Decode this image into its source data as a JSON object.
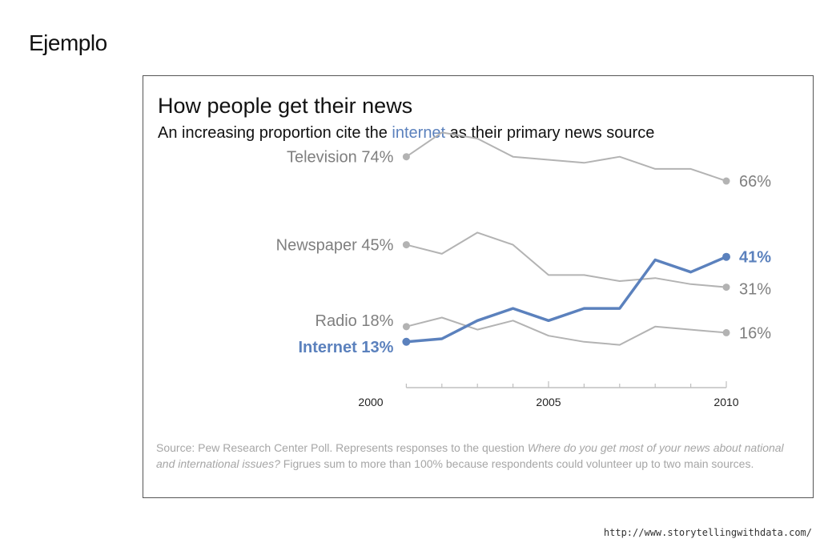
{
  "slide": {
    "title": "Ejemplo",
    "footer_url": "http://www.storytellingwithdata.com/"
  },
  "chart_data": {
    "type": "line",
    "title": "How people get their news",
    "subtitle_before": "An increasing proportion cite the ",
    "subtitle_highlight": "internet",
    "subtitle_after": " as their primary news source",
    "x": [
      2001,
      2002,
      2003,
      2004,
      2005,
      2006,
      2007,
      2008,
      2009,
      2010
    ],
    "xlim": [
      2000,
      2010
    ],
    "x_ticks": [
      "2000",
      "2005",
      "2010"
    ],
    "ylim": [
      0,
      80
    ],
    "series": [
      {
        "name": "Television",
        "start_label": "74%",
        "end_label": "66%",
        "highlight": false,
        "values": [
          74,
          82,
          80,
          74,
          73,
          72,
          74,
          70,
          70,
          66
        ]
      },
      {
        "name": "Newspaper",
        "start_label": "45%",
        "end_label": "31%",
        "highlight": false,
        "values": [
          45,
          42,
          49,
          45,
          35,
          35,
          33,
          34,
          32,
          31
        ]
      },
      {
        "name": "Radio",
        "start_label": "18%",
        "end_label": "16%",
        "highlight": false,
        "values": [
          18,
          21,
          17,
          20,
          15,
          13,
          12,
          18,
          17,
          16
        ]
      },
      {
        "name": "Internet",
        "start_label": "13%",
        "end_label": "41%",
        "highlight": true,
        "values": [
          13,
          14,
          20,
          24,
          20,
          24,
          24,
          40,
          36,
          41
        ]
      }
    ],
    "colors": {
      "muted": "#b3b3b3",
      "muted_text": "#7f7f7f",
      "highlight": "#5b81bd",
      "axis": "#bfbfbf"
    },
    "source_before": "Source: Pew Research Center Poll. Represents responses to the question ",
    "source_italic": "Where do you get most of your news about national and international issues?",
    "source_after": " Figrues sum to more than 100% because respondents could volunteer up to two main sources."
  }
}
